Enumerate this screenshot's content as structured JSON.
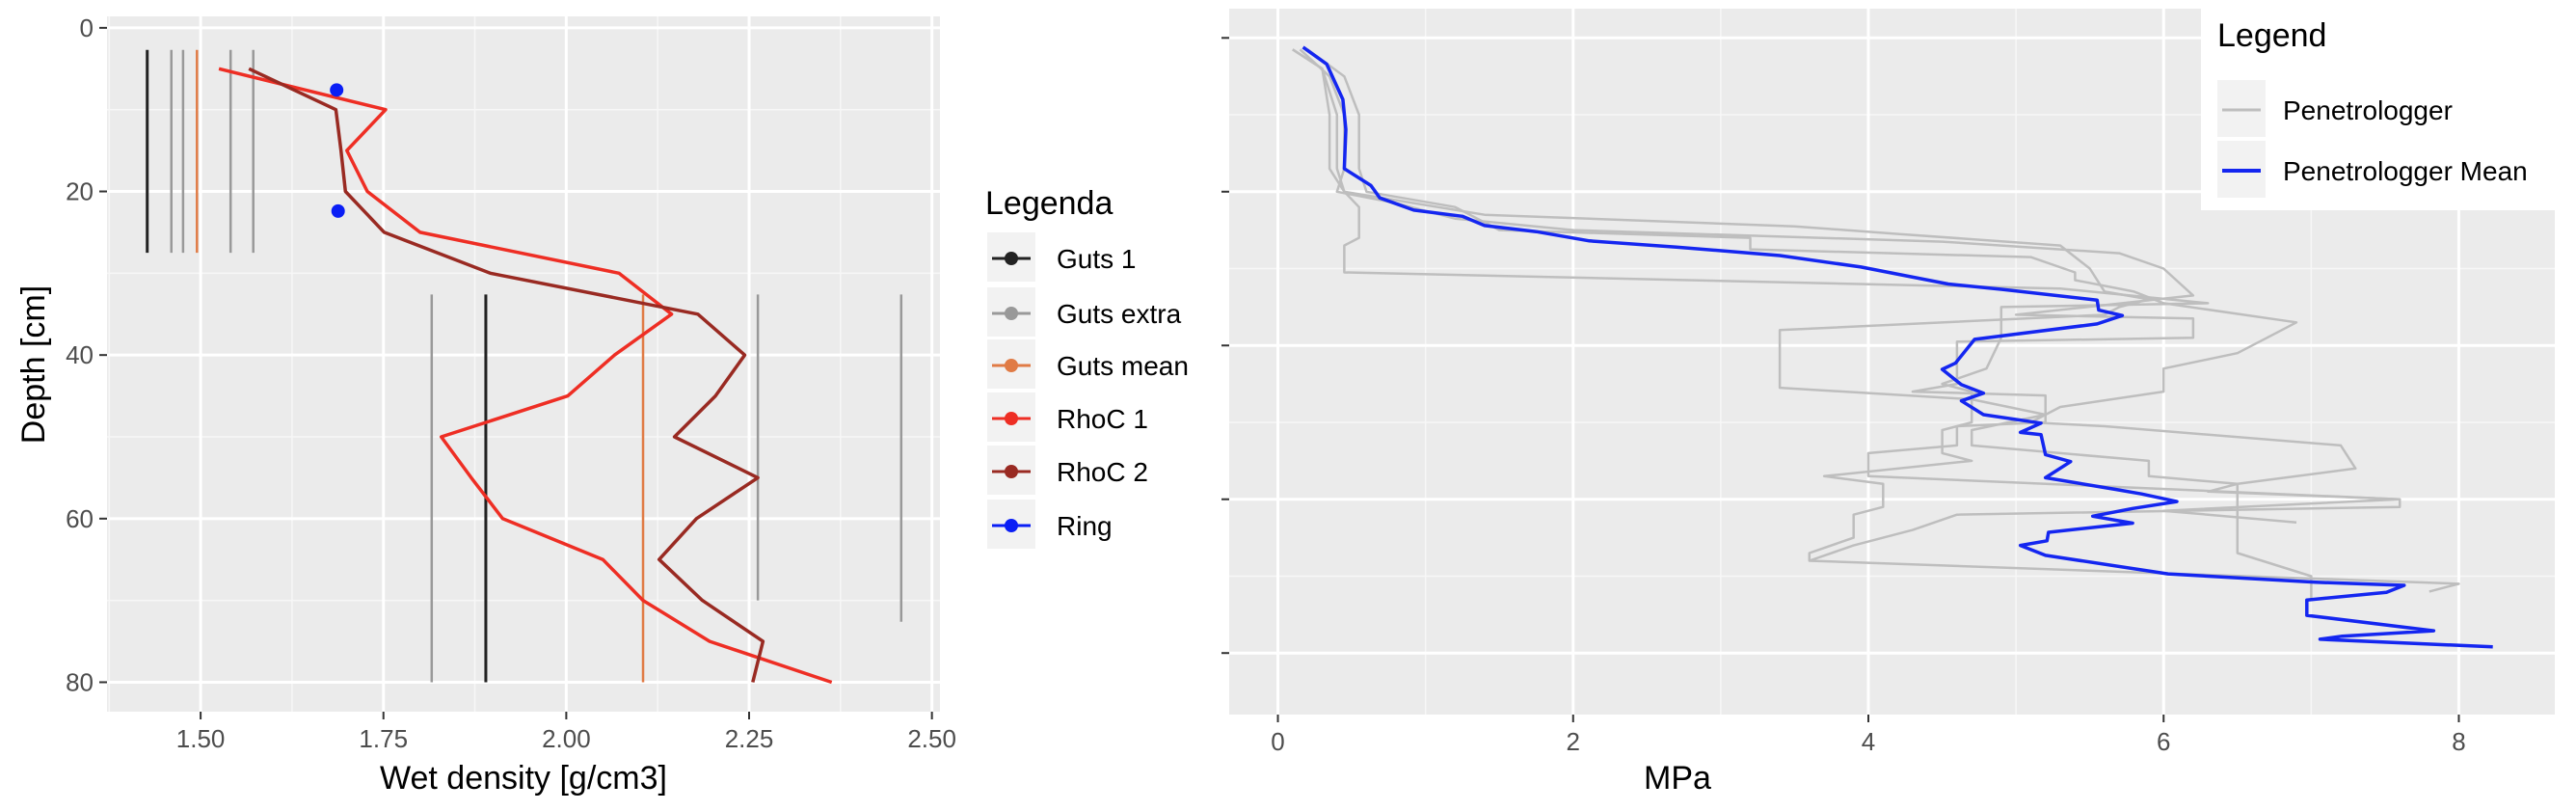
{
  "chart_data": [
    {
      "type": "line",
      "title": "",
      "xlabel": "Wet density [g/cm3]",
      "ylabel": "Depth [cm]",
      "xlim": [
        1.372,
        2.511
      ],
      "ylim": [
        83.6,
        -1.4
      ],
      "y_reversed": true,
      "grid": true,
      "x_ticks": [
        "1.50",
        "1.75",
        "2.00",
        "2.25",
        "2.50"
      ],
      "x_tick_values": [
        1.5,
        1.75,
        2.0,
        2.25,
        2.5
      ],
      "y_ticks": [
        "0",
        "20",
        "40",
        "60",
        "80"
      ],
      "y_tick_values": [
        0,
        20,
        40,
        60,
        80
      ],
      "legend": {
        "title": "Legenda",
        "placement": "right",
        "entries": [
          "Guts 1",
          "Guts extra",
          "Guts mean",
          "RhoC 1",
          "RhoC 2",
          "Ring"
        ]
      },
      "colors": {
        "Guts 1": "#222222",
        "Guts extra": "#999999",
        "Guts mean": "#E07B45",
        "RhoC 1": "#EE2E24",
        "RhoC 2": "#992A22",
        "Ring": "#0A1EF5"
      },
      "segments": [
        {
          "series": "Guts 1",
          "x": 1.427,
          "depth_from": 2.7,
          "depth_to": 27.5
        },
        {
          "series": "Guts extra",
          "x": 1.46,
          "depth_from": 2.7,
          "depth_to": 27.5
        },
        {
          "series": "Guts extra",
          "x": 1.476,
          "depth_from": 2.7,
          "depth_to": 27.5
        },
        {
          "series": "Guts mean",
          "x": 1.495,
          "depth_from": 2.7,
          "depth_to": 27.5
        },
        {
          "series": "Guts extra",
          "x": 1.541,
          "depth_from": 2.7,
          "depth_to": 27.5
        },
        {
          "series": "Guts extra",
          "x": 1.572,
          "depth_from": 2.7,
          "depth_to": 27.5
        },
        {
          "series": "Guts extra",
          "x": 1.816,
          "depth_from": 32.6,
          "depth_to": 80
        },
        {
          "series": "Guts 1",
          "x": 1.89,
          "depth_from": 32.6,
          "depth_to": 80
        },
        {
          "series": "Guts mean",
          "x": 2.105,
          "depth_from": 32.6,
          "depth_to": 80
        },
        {
          "series": "Guts extra",
          "x": 2.262,
          "depth_from": 32.6,
          "depth_to": 70
        },
        {
          "series": "Guts extra",
          "x": 2.458,
          "depth_from": 32.6,
          "depth_to": 72.6
        }
      ],
      "series": [
        {
          "name": "RhoC 1",
          "points": [
            [
              1.525,
              5
            ],
            [
              1.753,
              10
            ],
            [
              1.7,
              15
            ],
            [
              1.728,
              20
            ],
            [
              1.8,
              25
            ],
            [
              2.072,
              30
            ],
            [
              2.144,
              35
            ],
            [
              2.066,
              40
            ],
            [
              2.002,
              45
            ],
            [
              1.829,
              50
            ],
            [
              1.87,
              55
            ],
            [
              1.913,
              60
            ],
            [
              2.05,
              65
            ],
            [
              2.105,
              70
            ],
            [
              2.196,
              75
            ],
            [
              2.363,
              80
            ]
          ]
        },
        {
          "name": "RhoC 2",
          "points": [
            [
              1.566,
              5
            ],
            [
              1.685,
              10
            ],
            [
              1.692,
              15
            ],
            [
              1.698,
              20
            ],
            [
              1.751,
              25
            ],
            [
              1.896,
              30
            ],
            [
              2.18,
              35
            ],
            [
              2.244,
              40
            ],
            [
              2.204,
              45
            ],
            [
              2.148,
              50
            ],
            [
              2.262,
              55
            ],
            [
              2.178,
              60
            ],
            [
              2.127,
              65
            ],
            [
              2.186,
              70
            ],
            [
              2.269,
              75
            ],
            [
              2.255,
              80
            ]
          ]
        },
        {
          "name": "Ring",
          "points": [
            [
              1.686,
              7.6
            ],
            [
              1.688,
              22.4
            ]
          ]
        }
      ]
    },
    {
      "type": "line",
      "title": "",
      "xlabel": "MPa",
      "ylabel": "",
      "xlim": [
        -0.33,
        8.65
      ],
      "ylim": [
        88,
        -3.8
      ],
      "y_reversed": true,
      "grid": true,
      "x_ticks": [
        "0",
        "2",
        "4",
        "6",
        "8"
      ],
      "x_tick_values": [
        0,
        2,
        4,
        6,
        8
      ],
      "y_tick_values": [
        0,
        20,
        40,
        60,
        80
      ],
      "legend": {
        "title": "Legend",
        "placement": "top-right",
        "entries": [
          "Penetrologger",
          "Penetrologger Mean"
        ]
      },
      "colors": {
        "Penetrologger": "#BEBEBE",
        "Penetrologger Mean": "#1426F0"
      },
      "series": [
        {
          "name": "Penetrologger",
          "points": [
            [
              0.1,
              1.5
            ],
            [
              0.3,
              4
            ],
            [
              0.35,
              10
            ],
            [
              0.35,
              17
            ],
            [
              0.45,
              20
            ],
            [
              0.55,
              22
            ],
            [
              0.55,
              26
            ],
            [
              0.45,
              27
            ],
            [
              0.45,
              30.5
            ],
            [
              5.3,
              32.6
            ],
            [
              6.3,
              34.5
            ],
            [
              4.9,
              35
            ],
            [
              4.9,
              39
            ],
            [
              4.8,
              43
            ],
            [
              4.5,
              45
            ],
            [
              4.7,
              46
            ],
            [
              4.7,
              50
            ],
            [
              4.5,
              51
            ],
            [
              4.5,
              54
            ],
            [
              4.7,
              55
            ],
            [
              3.7,
              57
            ],
            [
              4.1,
              58
            ],
            [
              4.1,
              61
            ],
            [
              3.9,
              62
            ],
            [
              3.9,
              65
            ],
            [
              3.6,
              67
            ],
            [
              3.6,
              68
            ],
            [
              7.3,
              70.5
            ],
            [
              8.0,
              71
            ],
            [
              7.8,
              72
            ]
          ]
        },
        {
          "name": "Penetrologger",
          "points": [
            [
              0.2,
              1.5
            ],
            [
              0.45,
              5
            ],
            [
              0.55,
              10
            ],
            [
              0.55,
              17
            ],
            [
              0.6,
              20
            ],
            [
              1.2,
              22
            ],
            [
              1.5,
              25
            ],
            [
              3.2,
              26
            ],
            [
              3.2,
              27.5
            ],
            [
              5.1,
              28.5
            ],
            [
              5.4,
              30.5
            ],
            [
              5.4,
              31.5
            ],
            [
              5.8,
              33
            ],
            [
              6.0,
              34.5
            ],
            [
              6.9,
              37
            ],
            [
              6.7,
              39
            ],
            [
              6.5,
              41
            ],
            [
              6.0,
              43
            ],
            [
              6.0,
              46
            ],
            [
              5.3,
              48
            ],
            [
              5.1,
              50
            ],
            [
              5.6,
              50.5
            ],
            [
              7.2,
              53
            ],
            [
              7.3,
              56
            ],
            [
              6.5,
              58
            ],
            [
              6.5,
              67
            ],
            [
              7.0,
              70
            ],
            [
              7.0,
              73
            ]
          ]
        },
        {
          "name": "Penetrologger",
          "points": [
            [
              0.1,
              1.5
            ],
            [
              0.3,
              4
            ],
            [
              0.4,
              10
            ],
            [
              0.4,
              17
            ],
            [
              0.45,
              20
            ],
            [
              1.4,
              23
            ],
            [
              3.5,
              24.5
            ],
            [
              4.2,
              25.5
            ],
            [
              5.3,
              27
            ],
            [
              5.5,
              30
            ],
            [
              5.6,
              33
            ],
            [
              5.9,
              34
            ],
            [
              5.7,
              35
            ],
            [
              5.6,
              36
            ],
            [
              3.4,
              38
            ],
            [
              3.4,
              45.5
            ],
            [
              4.7,
              47
            ],
            [
              5.2,
              49
            ],
            [
              4.7,
              51
            ],
            [
              4.7,
              53
            ],
            [
              5.9,
              55
            ],
            [
              5.9,
              57
            ],
            [
              6.5,
              58
            ],
            [
              6.3,
              59
            ],
            [
              7.6,
              60
            ],
            [
              6.0,
              61.5
            ],
            [
              6.9,
              63
            ]
          ]
        },
        {
          "name": "Penetrologger",
          "points": [
            [
              0.15,
              1.5
            ],
            [
              0.35,
              5
            ],
            [
              0.45,
              10
            ],
            [
              0.45,
              17
            ],
            [
              0.4,
              20
            ],
            [
              0.8,
              21.5
            ],
            [
              1.2,
              23.5
            ],
            [
              2.0,
              25
            ],
            [
              4.5,
              26.5
            ],
            [
              5.7,
              28
            ],
            [
              6.0,
              30
            ],
            [
              6.2,
              33.5
            ],
            [
              5.0,
              36
            ],
            [
              6.2,
              36.5
            ],
            [
              6.2,
              39
            ],
            [
              4.6,
              39.5
            ],
            [
              4.6,
              45
            ],
            [
              4.3,
              46
            ],
            [
              5.2,
              46.5
            ],
            [
              5.2,
              50
            ],
            [
              4.6,
              50.5
            ],
            [
              4.6,
              53
            ],
            [
              4.0,
              54
            ],
            [
              4.0,
              57
            ],
            [
              7.6,
              60
            ],
            [
              7.6,
              61
            ],
            [
              4.6,
              62
            ],
            [
              4.3,
              64
            ],
            [
              3.9,
              66
            ],
            [
              3.6,
              68
            ]
          ]
        },
        {
          "name": "Penetrologger Mean",
          "points": [
            [
              0.17,
              1.2
            ],
            [
              0.33,
              3.4
            ],
            [
              0.44,
              8
            ],
            [
              0.46,
              11.9
            ],
            [
              0.45,
              17
            ],
            [
              0.63,
              19.2
            ],
            [
              0.69,
              20.8
            ],
            [
              0.92,
              22.4
            ],
            [
              1.25,
              23.2
            ],
            [
              1.4,
              24.4
            ],
            [
              1.75,
              25.2
            ],
            [
              2.11,
              26.4
            ],
            [
              2.7,
              27.2
            ],
            [
              3.4,
              28.3
            ],
            [
              3.95,
              29.8
            ],
            [
              4.54,
              32
            ],
            [
              4.9,
              32.7
            ],
            [
              5.55,
              34.1
            ],
            [
              5.56,
              35.4
            ],
            [
              5.72,
              36.1
            ],
            [
              5.55,
              37.2
            ],
            [
              4.72,
              39.2
            ],
            [
              4.59,
              42.3
            ],
            [
              4.5,
              43.1
            ],
            [
              4.63,
              45.1
            ],
            [
              4.78,
              46.2
            ],
            [
              4.63,
              47.2
            ],
            [
              4.78,
              49
            ],
            [
              5.17,
              50.1
            ],
            [
              5.03,
              51.3
            ],
            [
              5.17,
              51.6
            ],
            [
              5.2,
              54.2
            ],
            [
              5.37,
              55.1
            ],
            [
              5.2,
              57.2
            ],
            [
              5.67,
              58.7
            ],
            [
              5.85,
              59.3
            ],
            [
              6.09,
              60.3
            ],
            [
              5.79,
              61.2
            ],
            [
              5.52,
              62.2
            ],
            [
              5.79,
              63.1
            ],
            [
              5.22,
              64.3
            ],
            [
              5.21,
              65.4
            ],
            [
              5.03,
              66
            ],
            [
              5.2,
              67.3
            ],
            [
              6.03,
              69.7
            ],
            [
              7.03,
              70.8
            ],
            [
              7.63,
              71.2
            ],
            [
              7.51,
              72.1
            ],
            [
              6.97,
              73.1
            ],
            [
              6.97,
              75.1
            ],
            [
              7.83,
              77.1
            ],
            [
              7.21,
              77.8
            ],
            [
              7.06,
              78.2
            ],
            [
              8.23,
              79.2
            ]
          ]
        }
      ]
    }
  ]
}
